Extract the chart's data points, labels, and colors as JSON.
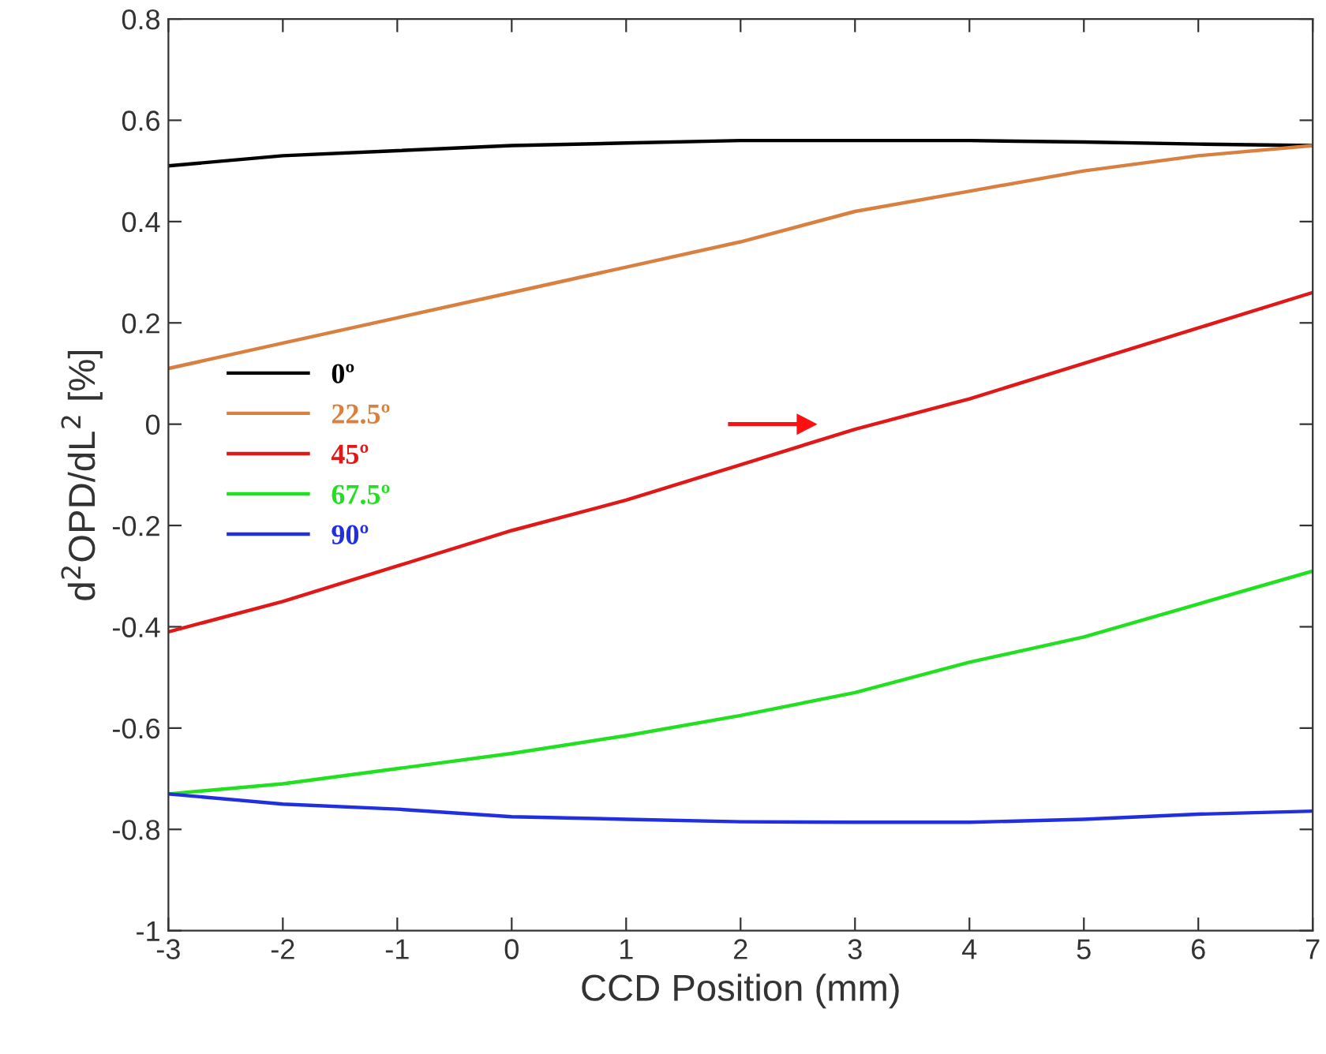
{
  "chart_data": {
    "type": "line",
    "xlabel": "CCD Position (mm)",
    "ylabel": "d$^{2}$OPD/dL$^{2}$ [%]",
    "x": [
      -3,
      -2,
      -1,
      0,
      1,
      2,
      3,
      4,
      5,
      6,
      7
    ],
    "series": [
      {
        "name": "0º",
        "color": "#000000",
        "values": [
          0.51,
          0.53,
          0.54,
          0.55,
          0.555,
          0.56,
          0.56,
          0.56,
          0.557,
          0.553,
          0.55
        ]
      },
      {
        "name": "22.5º",
        "color": "#d98040",
        "values": [
          0.11,
          0.16,
          0.21,
          0.26,
          0.31,
          0.36,
          0.42,
          0.46,
          0.5,
          0.53,
          0.55
        ]
      },
      {
        "name": "45º",
        "color": "#e01818",
        "values": [
          -0.41,
          -0.35,
          -0.28,
          -0.21,
          -0.15,
          -0.08,
          -0.01,
          0.05,
          0.12,
          0.19,
          0.26
        ]
      },
      {
        "name": "67.5º",
        "color": "#20e020",
        "values": [
          -0.73,
          -0.71,
          -0.68,
          -0.65,
          -0.615,
          -0.575,
          -0.53,
          -0.47,
          -0.42,
          -0.355,
          -0.29
        ]
      },
      {
        "name": "90º",
        "color": "#2030e0",
        "values": [
          -0.73,
          -0.75,
          -0.76,
          -0.775,
          -0.78,
          -0.785,
          -0.786,
          -0.786,
          -0.78,
          -0.77,
          -0.764
        ]
      }
    ],
    "xlim": [
      -3,
      7
    ],
    "xticks": [
      -3,
      -2,
      -1,
      0,
      1,
      2,
      3,
      4,
      5,
      6,
      7
    ],
    "ylim": [
      -1,
      0.8
    ],
    "yticks": [
      -1,
      -0.8,
      -0.6,
      -0.4,
      -0.2,
      0,
      0.2,
      0.4,
      0.6,
      0.8
    ],
    "grid": false,
    "legend": "left",
    "marker": "none",
    "line_style": "solid"
  }
}
